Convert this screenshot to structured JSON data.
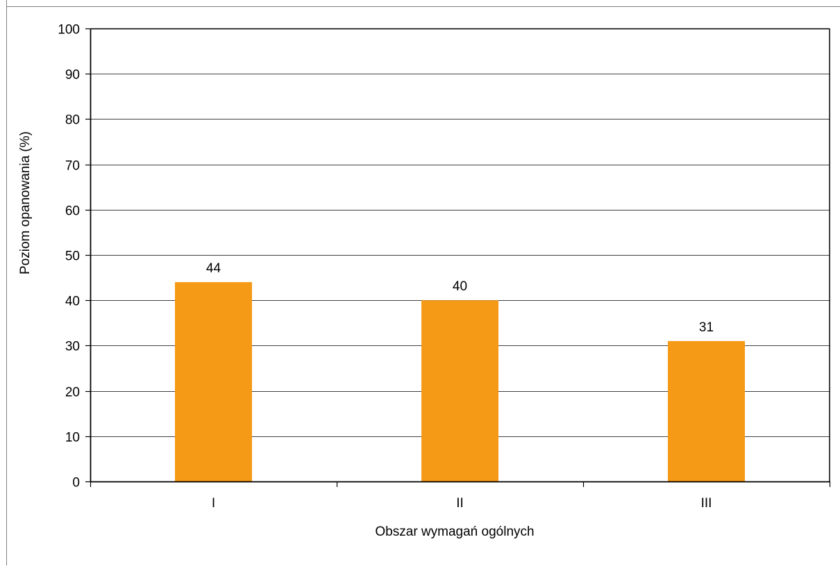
{
  "chart_data": {
    "type": "bar",
    "title": "",
    "categories": [
      "I",
      "II",
      "III"
    ],
    "values": [
      44,
      40,
      31
    ],
    "data_labels": [
      "44",
      "40",
      "31"
    ],
    "xlabel": "Obszar wymagań ogólnych",
    "ylabel": "Poziom opanowania (%)",
    "ylim": [
      0,
      100
    ],
    "yticks": [
      0,
      10,
      20,
      30,
      40,
      50,
      60,
      70,
      80,
      90,
      100
    ],
    "ytick_labels": [
      "0",
      "10",
      "20",
      "30",
      "40",
      "50",
      "60",
      "70",
      "80",
      "90",
      "100"
    ],
    "grid": true,
    "legend": "none",
    "bar_color": "#F59A16",
    "grid_color": "#000000"
  }
}
